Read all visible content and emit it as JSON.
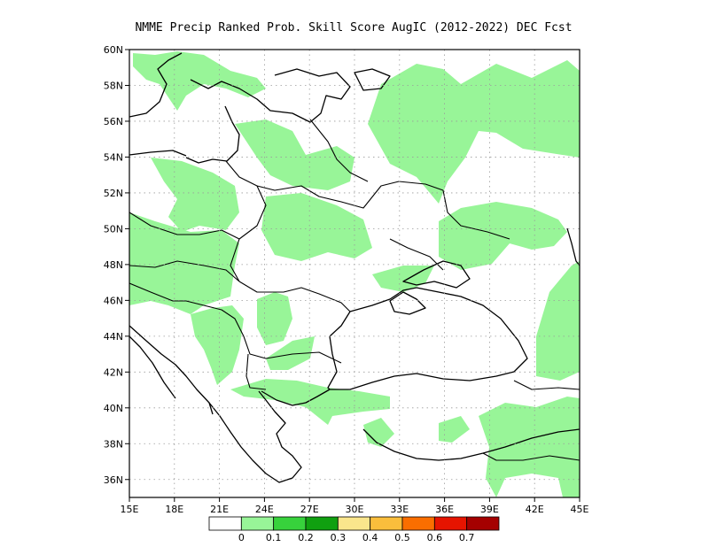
{
  "title": "NMME Precip Ranked Prob. Skill Score AugIC (2012-2022) DEC Fcst",
  "map": {
    "lon_range": [
      15,
      45
    ],
    "lat_range": [
      35,
      60
    ],
    "x_ticks": [
      {
        "value": 15,
        "label": "15E"
      },
      {
        "value": 18,
        "label": "18E"
      },
      {
        "value": 21,
        "label": "21E"
      },
      {
        "value": 24,
        "label": "24E"
      },
      {
        "value": 27,
        "label": "27E"
      },
      {
        "value": 30,
        "label": "30E"
      },
      {
        "value": 33,
        "label": "33E"
      },
      {
        "value": 36,
        "label": "36E"
      },
      {
        "value": 39,
        "label": "39E"
      },
      {
        "value": 42,
        "label": "42E"
      },
      {
        "value": 45,
        "label": "45E"
      }
    ],
    "y_ticks": [
      {
        "value": 36,
        "label": "36N"
      },
      {
        "value": 38,
        "label": "38N"
      },
      {
        "value": 40,
        "label": "40N"
      },
      {
        "value": 42,
        "label": "42N"
      },
      {
        "value": 44,
        "label": "44N"
      },
      {
        "value": 46,
        "label": "46N"
      },
      {
        "value": 48,
        "label": "48N"
      },
      {
        "value": 50,
        "label": "50N"
      },
      {
        "value": 52,
        "label": "52N"
      },
      {
        "value": 54,
        "label": "54N"
      },
      {
        "value": 56,
        "label": "56N"
      },
      {
        "value": 58,
        "label": "58N"
      },
      {
        "value": 60,
        "label": "60N"
      }
    ],
    "grid": true,
    "fill_color": "#98f598"
  },
  "colorbar": {
    "colors": [
      "#ffffff",
      "#98f598",
      "#37d23c",
      "#10a010",
      "#fae68c",
      "#fabe3c",
      "#fa6e00",
      "#e61400",
      "#a50000"
    ],
    "labels": [
      "0",
      "0.1",
      "0.2",
      "0.3",
      "0.4",
      "0.5",
      "0.6",
      "0.7"
    ]
  }
}
